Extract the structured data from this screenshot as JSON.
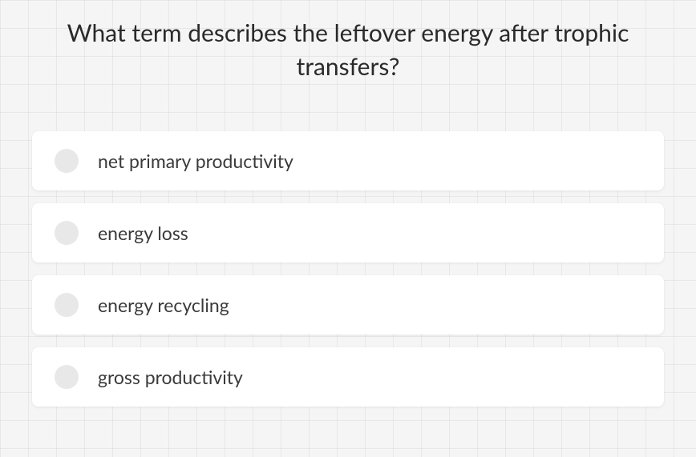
{
  "question": {
    "text": "What term describes the leftover energy after trophic transfers?",
    "fontsize": 30,
    "color": "#2a2a2a"
  },
  "options": [
    {
      "label": "net primary productivity",
      "selected": false
    },
    {
      "label": "energy loss",
      "selected": false
    },
    {
      "label": "energy recycling",
      "selected": false
    },
    {
      "label": "gross productivity",
      "selected": false
    }
  ],
  "styling": {
    "background_color": "#f5f5f5",
    "grid_color": "rgba(200,200,200,0.3)",
    "grid_size": 35,
    "option_background": "#ffffff",
    "option_border_radius": 8,
    "radio_color": "#e8e8e8",
    "radio_size": 30,
    "option_fontsize": 23,
    "option_text_color": "#3a3a3a",
    "option_gap": 16
  }
}
